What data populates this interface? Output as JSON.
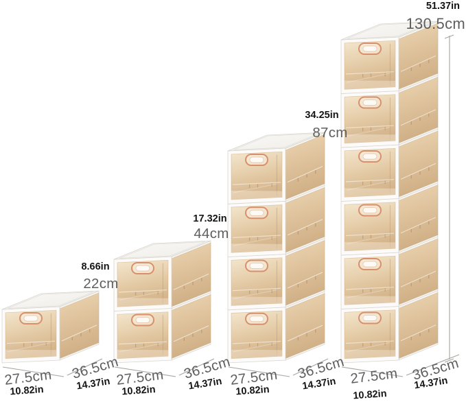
{
  "title": "Stackable storage box size diagram",
  "background": "#ffffff",
  "colors": {
    "cm_label": "#5e5e5e",
    "in_label": "#141414",
    "dimension_line": "#a7a49f",
    "frame_white": "#fcfbf9",
    "frame_edge": "#d9d6d0",
    "panel_light": "#f4e7cf",
    "panel_mid": "#e4cba6",
    "panel_dark": "#d3b38a",
    "side_light": "#ecd5b2",
    "side_dark": "#cfae84",
    "top_light": "#fbfaf8",
    "top_dark": "#eeece6",
    "handle": "#d8906c"
  },
  "stacks": [
    {
      "name": "one-tier-stack",
      "tiers": 1,
      "labels": {
        "height_in": "8.66in",
        "height_cm": "22cm",
        "width_cm": "27.5cm",
        "width_in": "10.82in",
        "depth_cm": "36.5cm",
        "depth_in": "14.37in"
      }
    },
    {
      "name": "two-tier-stack",
      "tiers": 2,
      "labels": {
        "height_in": "17.32in",
        "height_cm": "44cm",
        "width_cm": "27.5cm",
        "width_in": "10.82in",
        "depth_cm": "36.5cm",
        "depth_in": "14.37in"
      }
    },
    {
      "name": "four-tier-stack",
      "tiers": 4,
      "labels": {
        "height_in": "34.25in",
        "height_cm": "87cm",
        "width_cm": "27.5cm",
        "width_in": "10.82in",
        "depth_cm": "36.5cm",
        "depth_in": "14.37in"
      }
    },
    {
      "name": "six-tier-stack",
      "tiers": 6,
      "labels": {
        "height_in": "51.37in",
        "height_cm": "130.5cm",
        "width_cm": "27.5cm",
        "width_in": "10.82in",
        "depth_cm": "36.5cm",
        "depth_in": "14.37in"
      }
    }
  ]
}
